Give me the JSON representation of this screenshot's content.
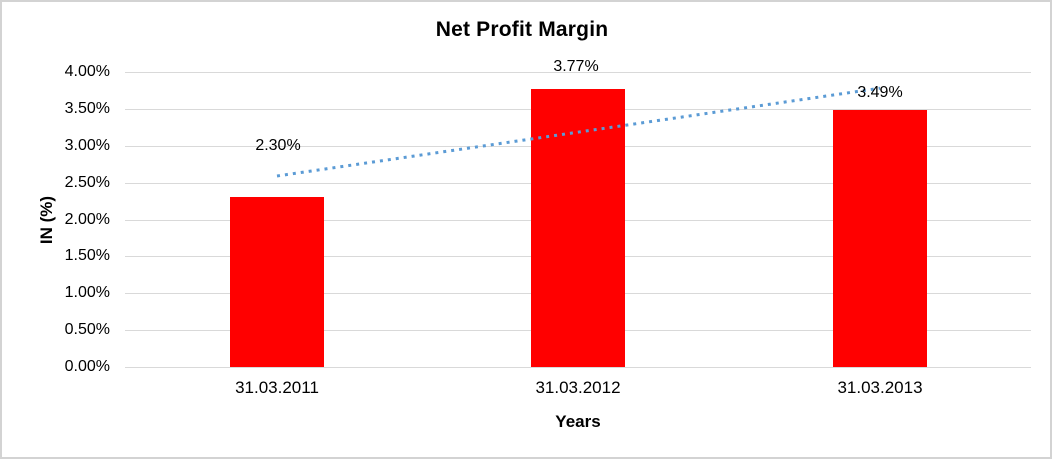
{
  "chart_data": {
    "type": "bar",
    "title": "Net Profit Margin",
    "xlabel": "Years",
    "ylabel": "IN (%)",
    "categories": [
      "31.03.2011",
      "31.03.2012",
      "31.03.2013"
    ],
    "series": [
      {
        "name": "Net Profit Margin",
        "values": [
          2.3,
          3.77,
          3.49
        ]
      }
    ],
    "value_labels": [
      "2.30%",
      "3.77%",
      "3.49%"
    ],
    "ylim": [
      0,
      4
    ],
    "ytick_step": 0.5,
    "yticks": [
      "4.00%",
      "3.50%",
      "3.00%",
      "2.50%",
      "2.00%",
      "1.50%",
      "1.00%",
      "0.50%",
      "0.00%"
    ],
    "grid": true,
    "legend_position": "none",
    "bar_color": "#ff0000",
    "gridline_color": "#d9d9d9",
    "trendline": {
      "type": "linear",
      "style": "dotted",
      "color": "#5b9bd5",
      "start_value": 2.59,
      "end_value": 3.78
    }
  }
}
